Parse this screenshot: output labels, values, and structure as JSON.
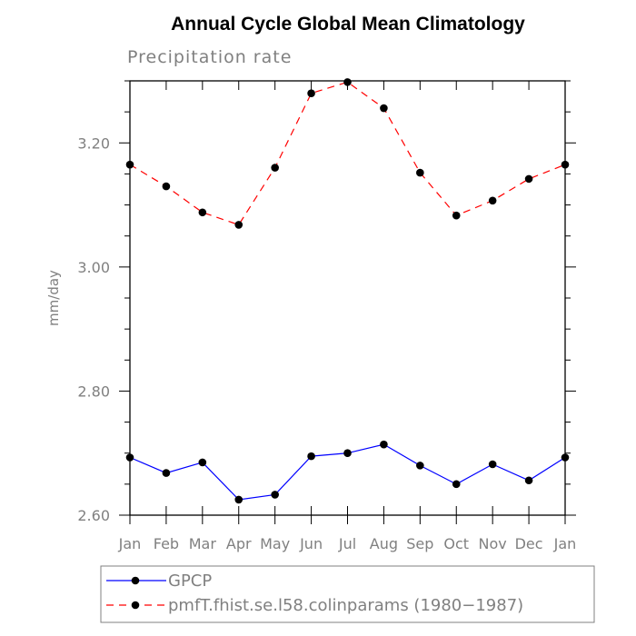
{
  "chart_data": {
    "type": "line",
    "title": "Annual Cycle Global Mean Climatology",
    "subtitle": "Precipitation rate",
    "ylabel": "mm/day",
    "xlabel": "",
    "categories": [
      "Jan",
      "Feb",
      "Mar",
      "Apr",
      "May",
      "Jun",
      "Jul",
      "Aug",
      "Sep",
      "Oct",
      "Nov",
      "Dec",
      "Jan"
    ],
    "ylim": [
      2.6,
      3.3
    ],
    "yticks": [
      2.6,
      2.8,
      3.0,
      3.2
    ],
    "ytick_labels": [
      "2.60",
      "2.80",
      "3.00",
      "3.20"
    ],
    "grid": false,
    "legend_position": "bottom",
    "series": [
      {
        "name": "GPCP",
        "color": "#0000ff",
        "line_style": "solid",
        "marker": "filled-circle",
        "values": [
          2.693,
          2.668,
          2.685,
          2.625,
          2.633,
          2.695,
          2.7,
          2.714,
          2.68,
          2.65,
          2.682,
          2.656,
          2.693
        ]
      },
      {
        "name": "pmfT.fhist.se.l58.colinparams (1980−1987)",
        "color": "#ff0000",
        "line_style": "dashed",
        "marker": "filled-circle",
        "values": [
          3.165,
          3.13,
          3.088,
          3.068,
          3.16,
          3.28,
          3.298,
          3.256,
          3.152,
          3.083,
          3.107,
          3.142,
          3.165
        ]
      }
    ]
  }
}
